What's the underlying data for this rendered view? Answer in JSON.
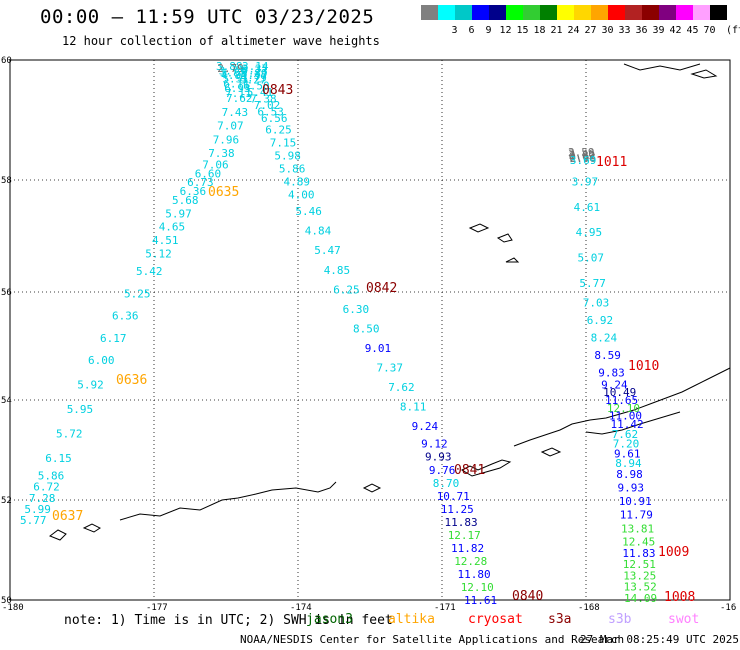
{
  "header": {
    "title": "00:00 – 11:59 UTC 03/23/2025",
    "subtitle": "12 hour collection of altimeter wave heights"
  },
  "legend": {
    "items": [
      {
        "label": "",
        "color": "#808080"
      },
      {
        "label": "3",
        "color": "#00ffff"
      },
      {
        "label": "6",
        "color": "#00c8c8"
      },
      {
        "label": "9",
        "color": "#0000ff"
      },
      {
        "label": "12",
        "color": "#00008b"
      },
      {
        "label": "15",
        "color": "#00ff00"
      },
      {
        "label": "18",
        "color": "#32cd32"
      },
      {
        "label": "21",
        "color": "#008000"
      },
      {
        "label": "24",
        "color": "#ffff00"
      },
      {
        "label": "27",
        "color": "#ffd700"
      },
      {
        "label": "30",
        "color": "#ffa500"
      },
      {
        "label": "33",
        "color": "#ff0000"
      },
      {
        "label": "36",
        "color": "#b22222"
      },
      {
        "label": "39",
        "color": "#8b0000"
      },
      {
        "label": "42",
        "color": "#800080"
      },
      {
        "label": "45",
        "color": "#ff00ff"
      },
      {
        "label": "70",
        "color": "#ffa0ff"
      },
      {
        "label": "",
        "color": "#000000"
      }
    ],
    "unit": "(ft)"
  },
  "axes": {
    "lon_ticks": [
      "-180",
      "-177",
      "-174",
      "-171",
      "-168",
      "-16"
    ],
    "lat_ticks": [
      "60",
      "58",
      "56",
      "54",
      "52",
      "50"
    ]
  },
  "tracks": {
    "colors": {
      "gray": "#707070",
      "cyan": "#00d0e0",
      "blue": "#0000ff",
      "navy": "#00008b",
      "green": "#33dd33",
      "lightgreen": "#55ee55"
    },
    "t1": [
      {
        "v": "3.88",
        "c": "cyan"
      },
      {
        "v": "2.79",
        "c": "gray"
      },
      {
        "v": "3.73",
        "c": "cyan"
      },
      {
        "v": "3.85",
        "c": "cyan"
      },
      {
        "v": "4.81",
        "c": "cyan"
      },
      {
        "v": "5.51",
        "c": "cyan"
      },
      {
        "v": "6.11",
        "c": "cyan"
      },
      {
        "v": "6.93",
        "c": "cyan"
      },
      {
        "v": "7.11",
        "c": "cyan"
      },
      {
        "v": "7.62",
        "c": "cyan"
      },
      {
        "v": "7.43",
        "c": "cyan"
      },
      {
        "v": "7.07",
        "c": "cyan"
      },
      {
        "v": "7.96",
        "c": "cyan"
      },
      {
        "v": "7.38",
        "c": "cyan"
      },
      {
        "v": "7.06",
        "c": "cyan"
      },
      {
        "v": "6.60",
        "c": "cyan"
      },
      {
        "v": "6.73",
        "c": "cyan"
      },
      {
        "v": "6.36",
        "c": "cyan"
      },
      {
        "v": "5.68",
        "c": "cyan"
      },
      {
        "v": "5.97",
        "c": "cyan"
      },
      {
        "v": "4.65",
        "c": "cyan"
      },
      {
        "v": "4.51",
        "c": "cyan"
      },
      {
        "v": "5.12",
        "c": "cyan"
      },
      {
        "v": "5.42",
        "c": "cyan"
      },
      {
        "v": "5.25",
        "c": "cyan"
      },
      {
        "v": "6.36",
        "c": "cyan"
      },
      {
        "v": "6.17",
        "c": "cyan"
      },
      {
        "v": "6.00",
        "c": "cyan"
      },
      {
        "v": "5.92",
        "c": "cyan"
      },
      {
        "v": "5.95",
        "c": "cyan"
      },
      {
        "v": "5.72",
        "c": "cyan"
      },
      {
        "v": "6.15",
        "c": "cyan"
      },
      {
        "v": "5.86",
        "c": "cyan"
      },
      {
        "v": "6.72",
        "c": "cyan"
      },
      {
        "v": "7.28",
        "c": "cyan"
      },
      {
        "v": "5.99",
        "c": "cyan"
      },
      {
        "v": "5.77",
        "c": "cyan"
      }
    ],
    "t2": [
      {
        "v": "3.14",
        "c": "cyan"
      },
      {
        "v": "3.37",
        "c": "cyan"
      },
      {
        "v": "3.73",
        "c": "cyan"
      },
      {
        "v": "3.89",
        "c": "cyan"
      },
      {
        "v": "5.37",
        "c": "cyan"
      },
      {
        "v": "5.79",
        "c": "cyan"
      },
      {
        "v": "5.27",
        "c": "cyan"
      },
      {
        "v": "6.50",
        "c": "cyan"
      },
      {
        "v": "5.41",
        "c": "cyan"
      },
      {
        "v": "7.38",
        "c": "cyan"
      },
      {
        "v": "7.02",
        "c": "cyan"
      },
      {
        "v": "6.53",
        "c": "cyan"
      },
      {
        "v": "6.56",
        "c": "cyan"
      },
      {
        "v": "6.25",
        "c": "cyan"
      },
      {
        "v": "7.15",
        "c": "cyan"
      },
      {
        "v": "5.98",
        "c": "cyan"
      },
      {
        "v": "5.86",
        "c": "cyan"
      },
      {
        "v": "4.89",
        "c": "cyan"
      },
      {
        "v": "4.00",
        "c": "cyan"
      },
      {
        "v": "5.46",
        "c": "cyan"
      },
      {
        "v": "4.84",
        "c": "cyan"
      },
      {
        "v": "5.47",
        "c": "cyan"
      },
      {
        "v": "4.85",
        "c": "cyan"
      },
      {
        "v": "6.25",
        "c": "cyan"
      },
      {
        "v": "6.30",
        "c": "cyan"
      },
      {
        "v": "8.50",
        "c": "cyan"
      },
      {
        "v": "9.01",
        "c": "blue"
      },
      {
        "v": "7.37",
        "c": "cyan"
      },
      {
        "v": "7.62",
        "c": "cyan"
      },
      {
        "v": "8.11",
        "c": "cyan"
      },
      {
        "v": "9.24",
        "c": "blue"
      },
      {
        "v": "9.12",
        "c": "blue"
      },
      {
        "v": "9.93",
        "c": "navy"
      },
      {
        "v": "9.76",
        "c": "blue"
      },
      {
        "v": "8.70",
        "c": "cyan"
      },
      {
        "v": "10.71",
        "c": "blue"
      },
      {
        "v": "11.25",
        "c": "blue"
      },
      {
        "v": "11.83",
        "c": "navy"
      },
      {
        "v": "12.17",
        "c": "green"
      },
      {
        "v": "11.82",
        "c": "blue"
      },
      {
        "v": "12.28",
        "c": "green"
      },
      {
        "v": "11.80",
        "c": "blue"
      },
      {
        "v": "12.10",
        "c": "green"
      },
      {
        "v": "11.61",
        "c": "blue"
      }
    ],
    "t3": [
      {
        "v": "2.59",
        "c": "gray"
      },
      {
        "v": "2.46",
        "c": "gray"
      },
      {
        "v": "2.82",
        "c": "gray"
      },
      {
        "v": "2.62",
        "c": "gray"
      },
      {
        "v": "2.96",
        "c": "gray"
      },
      {
        "v": "3.69",
        "c": "cyan"
      },
      {
        "v": "3.97",
        "c": "cyan"
      },
      {
        "v": "4.61",
        "c": "cyan"
      },
      {
        "v": "4.95",
        "c": "cyan"
      },
      {
        "v": "5.07",
        "c": "cyan"
      },
      {
        "v": "5.77",
        "c": "cyan"
      },
      {
        "v": "7.03",
        "c": "cyan"
      },
      {
        "v": "6.92",
        "c": "cyan"
      },
      {
        "v": "8.24",
        "c": "cyan"
      },
      {
        "v": "8.59",
        "c": "blue"
      },
      {
        "v": "9.83",
        "c": "blue"
      },
      {
        "v": "9.24",
        "c": "blue"
      },
      {
        "v": "10.49",
        "c": "navy"
      },
      {
        "v": "11.65",
        "c": "blue"
      },
      {
        "v": "12.10",
        "c": "green"
      },
      {
        "v": "11.00",
        "c": "blue"
      },
      {
        "v": "11.42",
        "c": "blue"
      },
      {
        "v": "7.62",
        "c": "cyan"
      },
      {
        "v": "7.20",
        "c": "cyan"
      },
      {
        "v": "9.61",
        "c": "blue"
      },
      {
        "v": "8.94",
        "c": "cyan"
      },
      {
        "v": "8.98",
        "c": "blue"
      },
      {
        "v": "9.93",
        "c": "blue"
      },
      {
        "v": "10.91",
        "c": "blue"
      },
      {
        "v": "11.79",
        "c": "blue"
      },
      {
        "v": "13.81",
        "c": "green"
      },
      {
        "v": "12.45",
        "c": "green"
      },
      {
        "v": "11.83",
        "c": "blue"
      },
      {
        "v": "12.51",
        "c": "green"
      },
      {
        "v": "13.25",
        "c": "green"
      },
      {
        "v": "13.52",
        "c": "green"
      },
      {
        "v": "14.09",
        "c": "green"
      }
    ]
  },
  "time_labels": [
    {
      "text": "0843",
      "color": "#8b0000"
    },
    {
      "text": "0635",
      "color": "#ffa500"
    },
    {
      "text": "0842",
      "color": "#8b0000"
    },
    {
      "text": "0636",
      "color": "#ffa500"
    },
    {
      "text": "0841",
      "color": "#8b0000"
    },
    {
      "text": "0637",
      "color": "#ffa500"
    },
    {
      "text": "0840",
      "color": "#8b0000"
    },
    {
      "text": "1011",
      "color": "#dd0000"
    },
    {
      "text": "1010",
      "color": "#dd0000"
    },
    {
      "text": "1009",
      "color": "#dd0000"
    },
    {
      "text": "1008",
      "color": "#dd0000"
    }
  ],
  "footer": {
    "note": "note: 1) Time is in UTC; 2) SWH is in feet",
    "satellites": [
      {
        "name": "jason3",
        "color": "#006400"
      },
      {
        "name": "altika",
        "color": "#ffa500"
      },
      {
        "name": "cryosat",
        "color": "#ff0000"
      },
      {
        "name": "s3a",
        "color": "#8b0000"
      },
      {
        "name": "s3b",
        "color": "#c0a0ff"
      },
      {
        "name": "swot",
        "color": "#ff80ff"
      }
    ],
    "credit": "NOAA/NESDIS Center for Satellite Applications and Research",
    "timestamp": "27 Mar 08:25:49 UTC 2025"
  }
}
